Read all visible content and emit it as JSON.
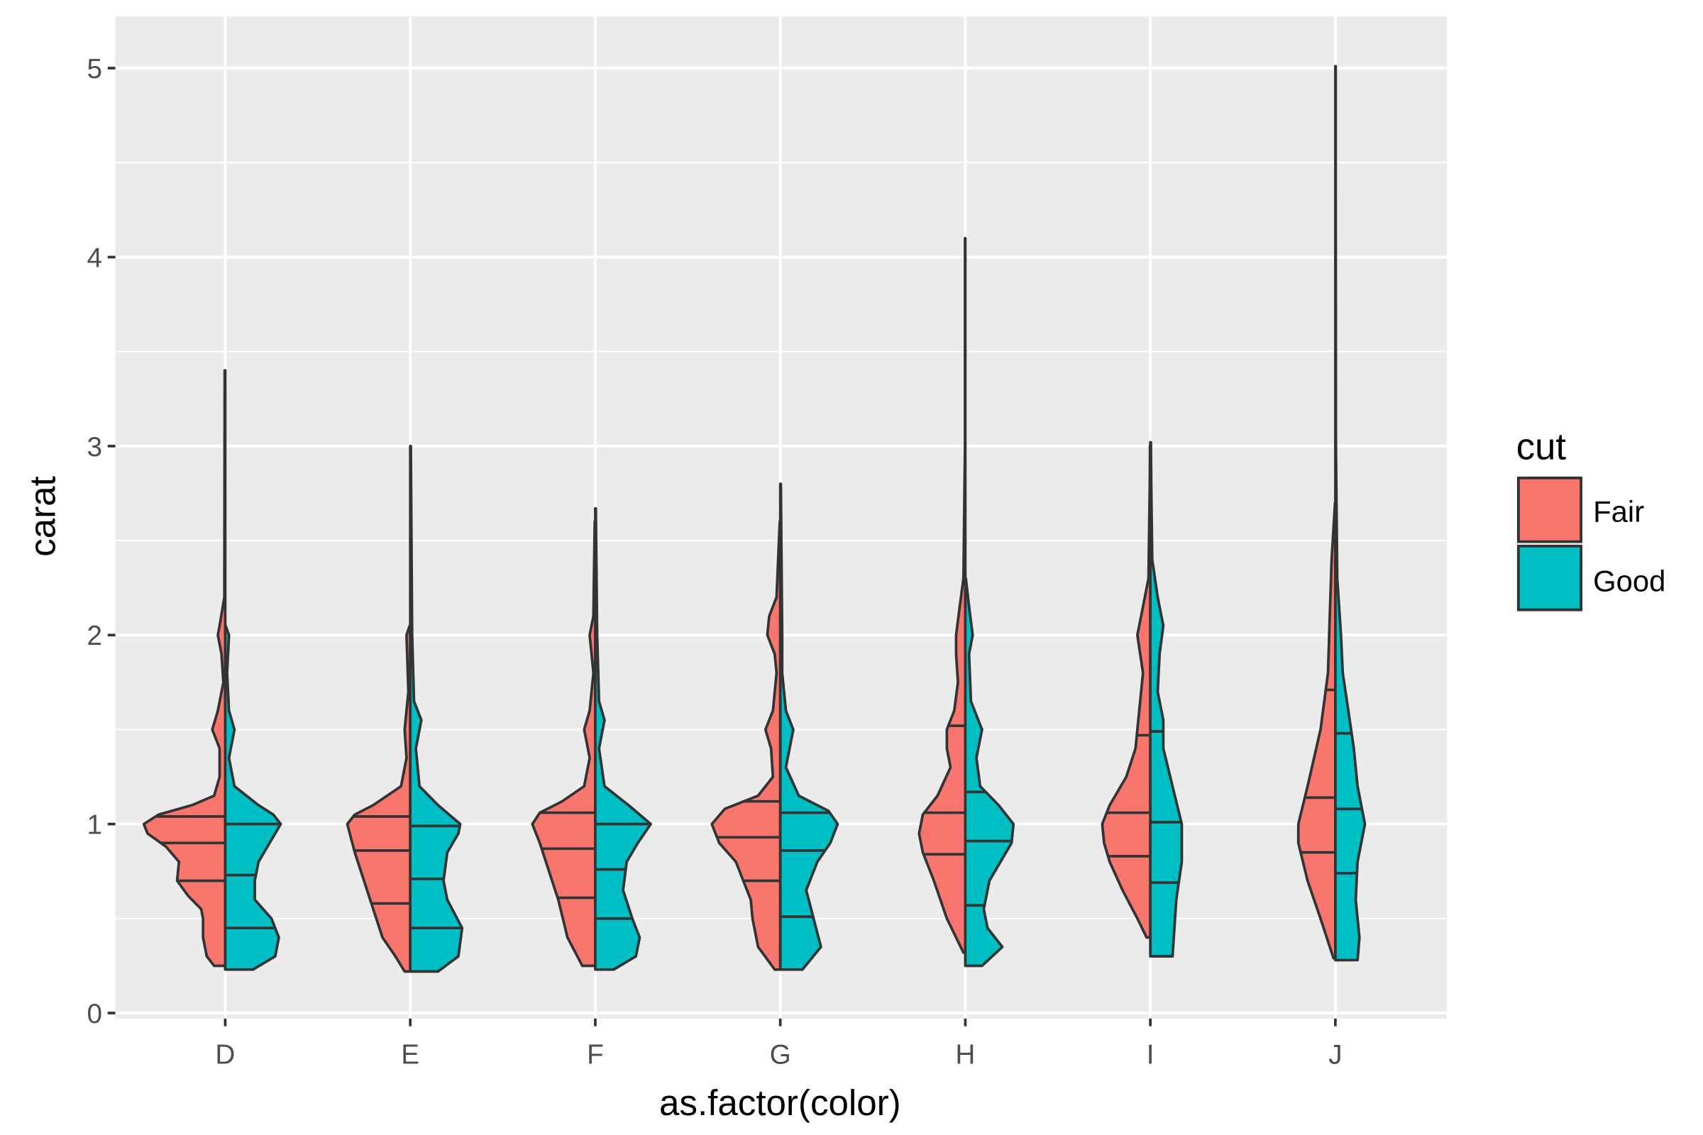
{
  "chart_data": {
    "type": "violin",
    "title": "",
    "xlabel": "as.factor(color)",
    "ylabel": "carat",
    "ylim": [
      -0.05,
      5.27
    ],
    "yticks": [
      0,
      1,
      2,
      3,
      4,
      5
    ],
    "grid": true,
    "categories": [
      "D",
      "E",
      "F",
      "G",
      "H",
      "I",
      "J"
    ],
    "legend": {
      "title": "cut",
      "placement": "right",
      "entries": [
        {
          "label": "Fair",
          "color": "#F8766D"
        },
        {
          "label": "Good",
          "color": "#00BFC4"
        }
      ]
    },
    "draw_quantiles": [
      0.25,
      0.5,
      0.75
    ],
    "violins": [
      {
        "category": "D",
        "fair": {
          "quantiles": [
            0.7,
            0.9,
            1.04
          ],
          "density": [
            [
              0.25,
              0.06
            ],
            [
              0.3,
              0.1
            ],
            [
              0.4,
              0.12
            ],
            [
              0.5,
              0.12
            ],
            [
              0.55,
              0.13
            ],
            [
              0.62,
              0.2
            ],
            [
              0.7,
              0.26
            ],
            [
              0.8,
              0.25
            ],
            [
              0.88,
              0.32
            ],
            [
              0.95,
              0.42
            ],
            [
              1.0,
              0.44
            ],
            [
              1.05,
              0.36
            ],
            [
              1.1,
              0.18
            ],
            [
              1.15,
              0.06
            ],
            [
              1.25,
              0.03
            ],
            [
              1.4,
              0.03
            ],
            [
              1.5,
              0.07
            ],
            [
              1.6,
              0.04
            ],
            [
              1.75,
              0.01
            ],
            [
              1.9,
              0.02
            ],
            [
              2.0,
              0.04
            ],
            [
              2.05,
              0.03
            ],
            [
              2.2,
              0.005
            ],
            [
              3.4,
              0.003
            ]
          ]
        },
        "good": {
          "quantiles": [
            0.45,
            0.73,
            1.0
          ],
          "density": [
            [
              0.23,
              0.15
            ],
            [
              0.3,
              0.27
            ],
            [
              0.4,
              0.29
            ],
            [
              0.5,
              0.25
            ],
            [
              0.6,
              0.16
            ],
            [
              0.7,
              0.16
            ],
            [
              0.8,
              0.18
            ],
            [
              0.9,
              0.24
            ],
            [
              1.0,
              0.3
            ],
            [
              1.05,
              0.26
            ],
            [
              1.1,
              0.18
            ],
            [
              1.2,
              0.05
            ],
            [
              1.35,
              0.02
            ],
            [
              1.5,
              0.05
            ],
            [
              1.6,
              0.02
            ],
            [
              1.8,
              0.01
            ],
            [
              2.0,
              0.02
            ],
            [
              2.05,
              0.002
            ]
          ]
        }
      },
      {
        "category": "E",
        "fair": {
          "quantiles": [
            0.58,
            0.86,
            1.04
          ],
          "density": [
            [
              0.22,
              0.03
            ],
            [
              0.3,
              0.08
            ],
            [
              0.4,
              0.15
            ],
            [
              0.55,
              0.2
            ],
            [
              0.7,
              0.25
            ],
            [
              0.85,
              0.3
            ],
            [
              1.0,
              0.34
            ],
            [
              1.05,
              0.3
            ],
            [
              1.1,
              0.2
            ],
            [
              1.2,
              0.05
            ],
            [
              1.35,
              0.02
            ],
            [
              1.5,
              0.03
            ],
            [
              1.7,
              0.01
            ],
            [
              2.0,
              0.02
            ],
            [
              2.05,
              0.003
            ]
          ]
        },
        "good": {
          "quantiles": [
            0.45,
            0.71,
            0.99
          ],
          "density": [
            [
              0.22,
              0.15
            ],
            [
              0.3,
              0.26
            ],
            [
              0.45,
              0.28
            ],
            [
              0.6,
              0.2
            ],
            [
              0.7,
              0.18
            ],
            [
              0.85,
              0.2
            ],
            [
              0.95,
              0.26
            ],
            [
              1.0,
              0.27
            ],
            [
              1.1,
              0.15
            ],
            [
              1.2,
              0.05
            ],
            [
              1.4,
              0.03
            ],
            [
              1.55,
              0.06
            ],
            [
              1.65,
              0.02
            ],
            [
              2.0,
              0.01
            ],
            [
              3.0,
              0.003
            ]
          ]
        }
      },
      {
        "category": "F",
        "fair": {
          "quantiles": [
            0.61,
            0.87,
            1.06
          ],
          "density": [
            [
              0.25,
              0.07
            ],
            [
              0.4,
              0.15
            ],
            [
              0.6,
              0.2
            ],
            [
              0.75,
              0.25
            ],
            [
              0.9,
              0.3
            ],
            [
              1.0,
              0.34
            ],
            [
              1.06,
              0.3
            ],
            [
              1.12,
              0.18
            ],
            [
              1.2,
              0.06
            ],
            [
              1.35,
              0.03
            ],
            [
              1.5,
              0.06
            ],
            [
              1.6,
              0.03
            ],
            [
              1.8,
              0.01
            ],
            [
              2.0,
              0.03
            ],
            [
              2.1,
              0.01
            ],
            [
              2.6,
              0.003
            ]
          ]
        },
        "good": {
          "quantiles": [
            0.5,
            0.76,
            1.0
          ],
          "density": [
            [
              0.23,
              0.1
            ],
            [
              0.3,
              0.22
            ],
            [
              0.4,
              0.24
            ],
            [
              0.5,
              0.2
            ],
            [
              0.65,
              0.15
            ],
            [
              0.8,
              0.17
            ],
            [
              0.9,
              0.23
            ],
            [
              1.0,
              0.3
            ],
            [
              1.1,
              0.18
            ],
            [
              1.2,
              0.05
            ],
            [
              1.4,
              0.02
            ],
            [
              1.55,
              0.05
            ],
            [
              1.65,
              0.02
            ],
            [
              2.0,
              0.01
            ],
            [
              2.67,
              0.003
            ]
          ]
        }
      },
      {
        "category": "G",
        "fair": {
          "quantiles": [
            0.7,
            0.93,
            1.12
          ],
          "density": [
            [
              0.23,
              0.03
            ],
            [
              0.35,
              0.12
            ],
            [
              0.5,
              0.15
            ],
            [
              0.6,
              0.16
            ],
            [
              0.7,
              0.2
            ],
            [
              0.8,
              0.24
            ],
            [
              0.9,
              0.33
            ],
            [
              1.0,
              0.37
            ],
            [
              1.08,
              0.3
            ],
            [
              1.15,
              0.12
            ],
            [
              1.25,
              0.04
            ],
            [
              1.4,
              0.05
            ],
            [
              1.5,
              0.08
            ],
            [
              1.6,
              0.04
            ],
            [
              1.8,
              0.02
            ],
            [
              1.9,
              0.03
            ],
            [
              2.0,
              0.07
            ],
            [
              2.1,
              0.06
            ],
            [
              2.2,
              0.02
            ],
            [
              2.6,
              0.003
            ]
          ]
        },
        "good": {
          "quantiles": [
            0.51,
            0.86,
            1.06
          ],
          "density": [
            [
              0.23,
              0.12
            ],
            [
              0.35,
              0.22
            ],
            [
              0.5,
              0.18
            ],
            [
              0.65,
              0.14
            ],
            [
              0.8,
              0.2
            ],
            [
              0.9,
              0.27
            ],
            [
              1.0,
              0.31
            ],
            [
              1.07,
              0.26
            ],
            [
              1.15,
              0.1
            ],
            [
              1.3,
              0.03
            ],
            [
              1.5,
              0.07
            ],
            [
              1.6,
              0.03
            ],
            [
              1.8,
              0.01
            ],
            [
              2.0,
              0.01
            ],
            [
              2.8,
              0.003
            ]
          ]
        }
      },
      {
        "category": "H",
        "fair": {
          "quantiles": [
            0.84,
            1.06,
            1.52
          ],
          "density": [
            [
              0.32,
              0.01
            ],
            [
              0.5,
              0.1
            ],
            [
              0.7,
              0.17
            ],
            [
              0.85,
              0.23
            ],
            [
              0.95,
              0.25
            ],
            [
              1.05,
              0.23
            ],
            [
              1.15,
              0.15
            ],
            [
              1.3,
              0.08
            ],
            [
              1.4,
              0.1
            ],
            [
              1.5,
              0.1
            ],
            [
              1.6,
              0.06
            ],
            [
              1.75,
              0.04
            ],
            [
              1.9,
              0.05
            ],
            [
              2.0,
              0.05
            ],
            [
              2.15,
              0.03
            ],
            [
              2.3,
              0.01
            ],
            [
              3.0,
              0.002
            ],
            [
              4.1,
              0.002
            ]
          ]
        },
        "good": {
          "quantiles": [
            0.57,
            0.91,
            1.17
          ],
          "density": [
            [
              0.25,
              0.09
            ],
            [
              0.35,
              0.2
            ],
            [
              0.45,
              0.12
            ],
            [
              0.55,
              0.1
            ],
            [
              0.7,
              0.13
            ],
            [
              0.9,
              0.25
            ],
            [
              1.0,
              0.26
            ],
            [
              1.1,
              0.18
            ],
            [
              1.2,
              0.08
            ],
            [
              1.35,
              0.06
            ],
            [
              1.5,
              0.09
            ],
            [
              1.65,
              0.03
            ],
            [
              1.9,
              0.02
            ],
            [
              2.0,
              0.04
            ],
            [
              2.15,
              0.02
            ],
            [
              2.3,
              0.003
            ]
          ]
        }
      },
      {
        "category": "I",
        "fair": {
          "quantiles": [
            0.83,
            1.06,
            1.47
          ],
          "density": [
            [
              0.4,
              0.02
            ],
            [
              0.5,
              0.07
            ],
            [
              0.65,
              0.15
            ],
            [
              0.8,
              0.22
            ],
            [
              0.9,
              0.25
            ],
            [
              1.0,
              0.26
            ],
            [
              1.1,
              0.22
            ],
            [
              1.25,
              0.13
            ],
            [
              1.4,
              0.08
            ],
            [
              1.6,
              0.06
            ],
            [
              1.8,
              0.04
            ],
            [
              2.0,
              0.07
            ],
            [
              2.15,
              0.04
            ],
            [
              2.3,
              0.01
            ],
            [
              2.8,
              0.003
            ],
            [
              3.0,
              0.002
            ]
          ]
        },
        "good": {
          "quantiles": [
            0.69,
            1.01,
            1.49
          ],
          "density": [
            [
              0.3,
              0.12
            ],
            [
              0.45,
              0.13
            ],
            [
              0.6,
              0.14
            ],
            [
              0.8,
              0.17
            ],
            [
              1.0,
              0.17
            ],
            [
              1.2,
              0.12
            ],
            [
              1.4,
              0.07
            ],
            [
              1.55,
              0.07
            ],
            [
              1.7,
              0.04
            ],
            [
              1.9,
              0.05
            ],
            [
              2.05,
              0.07
            ],
            [
              2.2,
              0.04
            ],
            [
              2.4,
              0.01
            ],
            [
              2.8,
              0.005
            ],
            [
              3.02,
              0.003
            ]
          ]
        }
      },
      {
        "category": "J",
        "fair": {
          "quantiles": [
            0.85,
            1.14,
            1.71
          ],
          "density": [
            [
              0.29,
              0.01
            ],
            [
              0.5,
              0.08
            ],
            [
              0.7,
              0.15
            ],
            [
              0.9,
              0.2
            ],
            [
              1.0,
              0.2
            ],
            [
              1.2,
              0.15
            ],
            [
              1.5,
              0.08
            ],
            [
              1.8,
              0.04
            ],
            [
              2.1,
              0.03
            ],
            [
              2.4,
              0.02
            ],
            [
              2.7,
              0.002
            ]
          ]
        },
        "good": {
          "quantiles": [
            0.74,
            1.08,
            1.48
          ],
          "density": [
            [
              0.28,
              0.12
            ],
            [
              0.4,
              0.13
            ],
            [
              0.6,
              0.11
            ],
            [
              0.8,
              0.12
            ],
            [
              1.0,
              0.16
            ],
            [
              1.2,
              0.12
            ],
            [
              1.4,
              0.1
            ],
            [
              1.6,
              0.07
            ],
            [
              1.8,
              0.04
            ],
            [
              2.0,
              0.03
            ],
            [
              2.3,
              0.01
            ],
            [
              3.0,
              0.003
            ],
            [
              4.4,
              0.002
            ],
            [
              5.01,
              0.002
            ]
          ]
        }
      }
    ]
  }
}
